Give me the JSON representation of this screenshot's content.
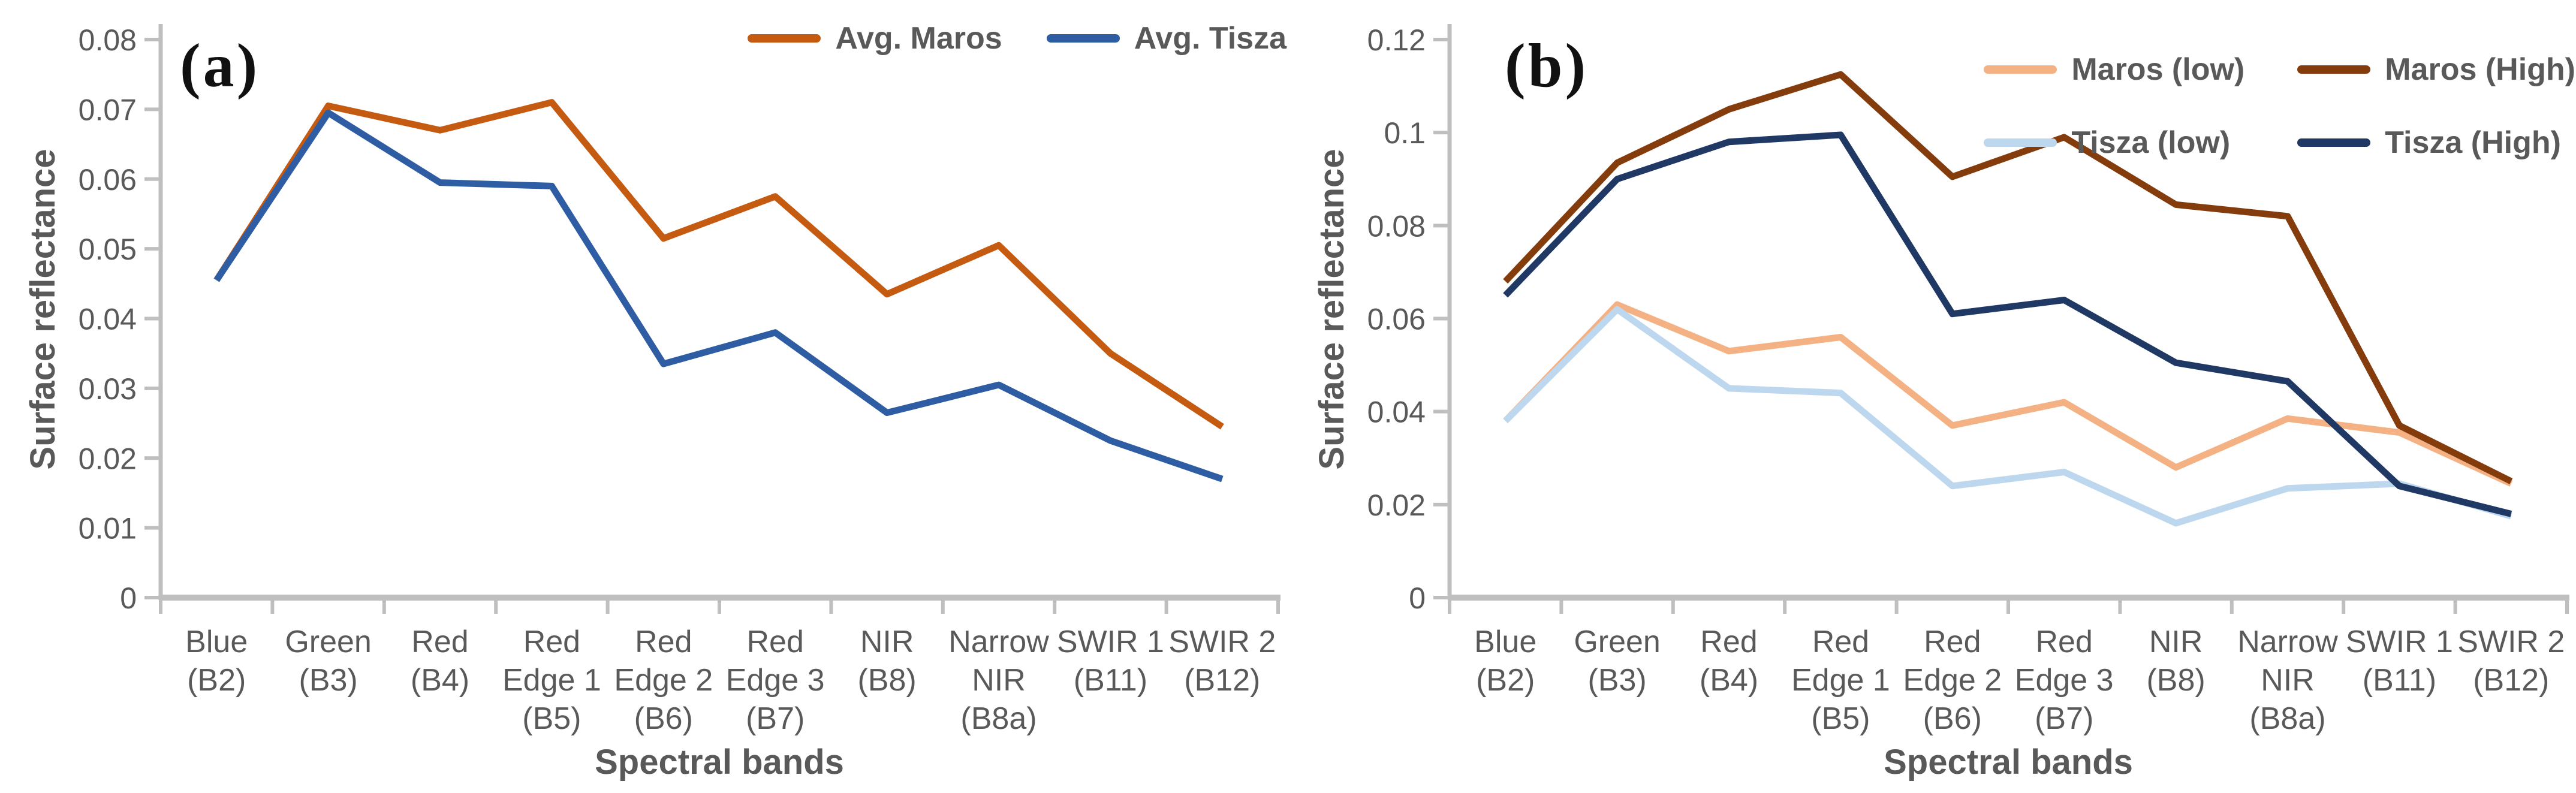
{
  "figure": {
    "background": "#ffffff",
    "text_color": "#595959",
    "axis_color": "#bfbfbf",
    "panel_label_color": "#111111"
  },
  "chart_data": [
    {
      "type": "line",
      "panel_label": "(a)",
      "title": "",
      "xlabel": "Spectral bands",
      "ylabel": "Surface reflectance",
      "ylim": [
        0,
        0.08
      ],
      "ytick_step": 0.01,
      "ytick_labels": [
        "0",
        "0.01",
        "0.02",
        "0.03",
        "0.04",
        "0.05",
        "0.06",
        "0.07",
        "0.08"
      ],
      "grid": false,
      "legend_position": "top-right-row",
      "categories": [
        "Blue (B2)",
        "Green (B3)",
        "Red (B4)",
        "Red Edge 1 (B5)",
        "Red Edge 2 (B6)",
        "Red Edge 3 (B7)",
        "NIR (B8)",
        "Narrow NIR (B8a)",
        "SWIR 1 (B11)",
        "SWIR 2 (B12)"
      ],
      "category_lines": [
        [
          "Blue",
          "(B2)"
        ],
        [
          "Green",
          "(B3)"
        ],
        [
          "Red",
          "(B4)"
        ],
        [
          "Red",
          "Edge 1",
          "(B5)"
        ],
        [
          "Red",
          "Edge 2",
          "(B6)"
        ],
        [
          "Red",
          "Edge 3",
          "(B7)"
        ],
        [
          "NIR",
          "(B8)"
        ],
        [
          "Narrow",
          "NIR",
          "(B8a)"
        ],
        [
          "SWIR 1",
          "(B11)"
        ],
        [
          "SWIR 2",
          "(B12)"
        ]
      ],
      "series": [
        {
          "name": "Avg. Maros",
          "color": "#C55A11",
          "values": [
            0.0455,
            0.0705,
            0.067,
            0.071,
            0.0515,
            0.0575,
            0.0435,
            0.0505,
            0.035,
            0.0245
          ]
        },
        {
          "name": "Avg. Tisza",
          "color": "#2E5DA4",
          "values": [
            0.0455,
            0.0695,
            0.0595,
            0.059,
            0.0335,
            0.038,
            0.0265,
            0.0305,
            0.0225,
            0.017
          ]
        }
      ]
    },
    {
      "type": "line",
      "panel_label": "(b)",
      "title": "",
      "xlabel": "Spectral bands",
      "ylabel": "Surface reflectance",
      "ylim": [
        0,
        0.12
      ],
      "ytick_step": 0.02,
      "ytick_labels": [
        "0",
        "0.02",
        "0.04",
        "0.06",
        "0.08",
        "0.1",
        "0.12"
      ],
      "grid": false,
      "legend_position": "top-right-grid",
      "categories": [
        "Blue (B2)",
        "Green (B3)",
        "Red (B4)",
        "Red Edge 1 (B5)",
        "Red Edge 2 (B6)",
        "Red Edge 3 (B7)",
        "NIR (B8)",
        "Narrow NIR (B8a)",
        "SWIR 1 (B11)",
        "SWIR 2 (B12)"
      ],
      "category_lines": [
        [
          "Blue",
          "(B2)"
        ],
        [
          "Green",
          "(B3)"
        ],
        [
          "Red",
          "(B4)"
        ],
        [
          "Red",
          "Edge 1",
          "(B5)"
        ],
        [
          "Red",
          "Edge 2",
          "(B6)"
        ],
        [
          "Red",
          "Edge 3",
          "(B7)"
        ],
        [
          "NIR",
          "(B8)"
        ],
        [
          "Narrow",
          "NIR",
          "(B8a)"
        ],
        [
          "SWIR 1",
          "(B11)"
        ],
        [
          "SWIR 2",
          "(B12)"
        ]
      ],
      "series": [
        {
          "name": "Maros (low)",
          "color": "#F4B183",
          "values": [
            0.038,
            0.063,
            0.053,
            0.056,
            0.037,
            0.042,
            0.028,
            0.0385,
            0.0355,
            0.0245
          ]
        },
        {
          "name": "Maros (High)",
          "color": "#843C0C",
          "values": [
            0.068,
            0.0935,
            0.105,
            0.1125,
            0.0905,
            0.099,
            0.0845,
            0.082,
            0.037,
            0.025
          ]
        },
        {
          "name": "Tisza (low)",
          "color": "#BDD7EE",
          "values": [
            0.038,
            0.062,
            0.045,
            0.044,
            0.024,
            0.027,
            0.016,
            0.0235,
            0.0245,
            0.0175
          ]
        },
        {
          "name": "Tisza (High)",
          "color": "#1F3864",
          "values": [
            0.065,
            0.09,
            0.098,
            0.0995,
            0.061,
            0.064,
            0.0505,
            0.0465,
            0.024,
            0.018
          ]
        }
      ]
    }
  ]
}
